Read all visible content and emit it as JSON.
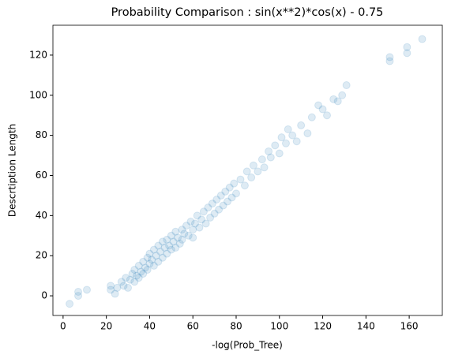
{
  "chart_data": {
    "type": "scatter",
    "title": "Probability Comparison : sin(x**2)*cos(x) - 0.75",
    "xlabel": "-log(Prob_Tree)",
    "ylabel": "Descrtiption Length",
    "x": [
      3,
      7,
      7,
      11,
      22,
      22,
      24,
      25,
      27,
      28,
      29,
      30,
      31,
      32,
      33,
      33,
      34,
      35,
      35,
      36,
      37,
      37,
      38,
      39,
      39,
      40,
      40,
      41,
      42,
      42,
      43,
      44,
      44,
      45,
      46,
      46,
      47,
      48,
      48,
      49,
      50,
      50,
      51,
      52,
      52,
      53,
      54,
      55,
      55,
      56,
      57,
      58,
      59,
      60,
      60,
      61,
      62,
      63,
      64,
      65,
      66,
      67,
      68,
      69,
      70,
      71,
      72,
      73,
      74,
      75,
      76,
      77,
      78,
      79,
      80,
      82,
      84,
      85,
      87,
      88,
      90,
      92,
      93,
      95,
      96,
      98,
      100,
      101,
      103,
      104,
      106,
      108,
      110,
      113,
      115,
      118,
      120,
      122,
      125,
      127,
      129,
      131,
      151,
      151,
      159,
      159,
      166
    ],
    "values": [
      -4,
      0,
      2,
      3,
      3,
      5,
      1,
      4,
      7,
      5,
      9,
      4,
      8,
      11,
      7,
      13,
      10,
      15,
      9,
      12,
      17,
      11,
      14,
      19,
      13,
      16,
      21,
      18,
      15,
      23,
      20,
      17,
      25,
      22,
      19,
      27,
      24,
      21,
      28,
      25,
      23,
      30,
      27,
      24,
      32,
      29,
      26,
      33,
      28,
      31,
      35,
      30,
      37,
      33,
      29,
      36,
      40,
      34,
      38,
      42,
      36,
      44,
      39,
      46,
      41,
      48,
      43,
      50,
      45,
      52,
      47,
      54,
      49,
      56,
      51,
      58,
      55,
      62,
      59,
      65,
      62,
      68,
      64,
      72,
      69,
      75,
      71,
      79,
      76,
      83,
      80,
      77,
      85,
      81,
      89,
      95,
      93,
      90,
      98,
      97,
      100,
      105,
      117,
      119,
      121,
      124,
      128
    ],
    "color": "#1f77b4",
    "alpha": 0.15,
    "xlim": [
      -4.7,
      175.3
    ],
    "xticks": [
      0,
      20,
      40,
      60,
      80,
      100,
      120,
      140,
      160
    ],
    "ylim": [
      -9.8,
      134.9
    ],
    "yticks": [
      0,
      20,
      40,
      60,
      80,
      100,
      120
    ]
  }
}
